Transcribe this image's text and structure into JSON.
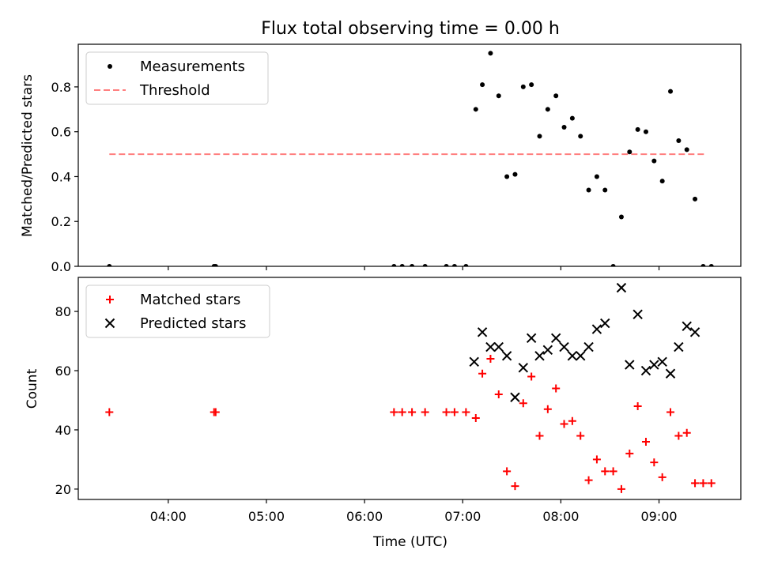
{
  "chart_data": [
    {
      "type": "scatter",
      "title": "Flux total observing time = 0.00 h",
      "xlabel": "",
      "ylabel": "Matched/Predicted stars",
      "ylim": [
        0,
        0.99
      ],
      "xlim": [
        "03:05",
        "09:50"
      ],
      "yticks": [
        "0.0",
        "0.2",
        "0.4",
        "0.6",
        "0.8"
      ],
      "legend": {
        "placement": "top-left",
        "entries": [
          {
            "label": "Measurements"
          },
          {
            "label": "Threshold"
          }
        ]
      },
      "threshold": {
        "name": "Threshold",
        "value": 0.5,
        "x_start": "03:24",
        "x_end": "09:28",
        "color": "#ff7f7f"
      },
      "series": [
        {
          "name": "Measurements",
          "color": "#000000",
          "points": [
            [
              "03:24",
              0.0
            ],
            [
              "04:28",
              0.0
            ],
            [
              "04:29",
              0.0
            ],
            [
              "06:18",
              0.0
            ],
            [
              "06:23",
              0.0
            ],
            [
              "06:29",
              0.0
            ],
            [
              "06:37",
              0.0
            ],
            [
              "06:50",
              0.0
            ],
            [
              "06:55",
              0.0
            ],
            [
              "07:02",
              0.0
            ],
            [
              "07:08",
              0.7
            ],
            [
              "07:12",
              0.81
            ],
            [
              "07:17",
              0.95
            ],
            [
              "07:22",
              0.76
            ],
            [
              "07:27",
              0.4
            ],
            [
              "07:32",
              0.41
            ],
            [
              "07:37",
              0.8
            ],
            [
              "07:42",
              0.81
            ],
            [
              "07:47",
              0.58
            ],
            [
              "07:52",
              0.7
            ],
            [
              "07:57",
              0.76
            ],
            [
              "08:02",
              0.62
            ],
            [
              "08:07",
              0.66
            ],
            [
              "08:12",
              0.58
            ],
            [
              "08:17",
              0.34
            ],
            [
              "08:22",
              0.4
            ],
            [
              "08:27",
              0.34
            ],
            [
              "08:32",
              0.0
            ],
            [
              "08:37",
              0.22
            ],
            [
              "08:42",
              0.51
            ],
            [
              "08:47",
              0.61
            ],
            [
              "08:52",
              0.6
            ],
            [
              "08:57",
              0.47
            ],
            [
              "09:02",
              0.38
            ],
            [
              "09:07",
              0.78
            ],
            [
              "09:12",
              0.56
            ],
            [
              "09:17",
              0.52
            ],
            [
              "09:22",
              0.3
            ],
            [
              "09:27",
              0.0
            ],
            [
              "09:32",
              0.0
            ]
          ]
        }
      ]
    },
    {
      "type": "scatter",
      "title": "",
      "xlabel": "Time (UTC)",
      "ylabel": "Count",
      "ylim": [
        16.5,
        91.5
      ],
      "xlim": [
        "03:05",
        "09:50"
      ],
      "xticks": [
        "04:00",
        "05:00",
        "06:00",
        "07:00",
        "08:00",
        "09:00"
      ],
      "yticks": [
        "20",
        "40",
        "60",
        "80"
      ],
      "legend": {
        "placement": "top-left",
        "entries": [
          {
            "label": "Matched stars"
          },
          {
            "label": "Predicted stars"
          }
        ]
      },
      "series": [
        {
          "name": "Matched stars",
          "marker": "plus",
          "color": "#ff0000",
          "points": [
            [
              "03:24",
              46
            ],
            [
              "04:28",
              46
            ],
            [
              "04:29",
              46
            ],
            [
              "06:18",
              46
            ],
            [
              "06:23",
              46
            ],
            [
              "06:29",
              46
            ],
            [
              "06:37",
              46
            ],
            [
              "06:50",
              46
            ],
            [
              "06:55",
              46
            ],
            [
              "07:02",
              46
            ],
            [
              "07:08",
              44
            ],
            [
              "07:12",
              59
            ],
            [
              "07:17",
              64
            ],
            [
              "07:22",
              52
            ],
            [
              "07:27",
              26
            ],
            [
              "07:32",
              21
            ],
            [
              "07:37",
              49
            ],
            [
              "07:42",
              58
            ],
            [
              "07:47",
              38
            ],
            [
              "07:52",
              47
            ],
            [
              "07:57",
              54
            ],
            [
              "08:02",
              42
            ],
            [
              "08:07",
              43
            ],
            [
              "08:12",
              38
            ],
            [
              "08:17",
              23
            ],
            [
              "08:22",
              30
            ],
            [
              "08:27",
              26
            ],
            [
              "08:32",
              26
            ],
            [
              "08:37",
              20
            ],
            [
              "08:42",
              32
            ],
            [
              "08:47",
              48
            ],
            [
              "08:52",
              36
            ],
            [
              "08:57",
              29
            ],
            [
              "09:02",
              24
            ],
            [
              "09:07",
              46
            ],
            [
              "09:12",
              38
            ],
            [
              "09:17",
              39
            ],
            [
              "09:22",
              22
            ],
            [
              "09:27",
              22
            ],
            [
              "09:32",
              22
            ]
          ]
        },
        {
          "name": "Predicted stars",
          "marker": "x",
          "color": "#000000",
          "points": [
            [
              "07:07",
              63
            ],
            [
              "07:12",
              73
            ],
            [
              "07:17",
              68
            ],
            [
              "07:22",
              68
            ],
            [
              "07:27",
              65
            ],
            [
              "07:32",
              51
            ],
            [
              "07:37",
              61
            ],
            [
              "07:42",
              71
            ],
            [
              "07:47",
              65
            ],
            [
              "07:52",
              67
            ],
            [
              "07:57",
              71
            ],
            [
              "08:02",
              68
            ],
            [
              "08:07",
              65
            ],
            [
              "08:12",
              65
            ],
            [
              "08:17",
              68
            ],
            [
              "08:22",
              74
            ],
            [
              "08:27",
              76
            ],
            [
              "08:37",
              88
            ],
            [
              "08:42",
              62
            ],
            [
              "08:47",
              79
            ],
            [
              "08:52",
              60
            ],
            [
              "08:57",
              62
            ],
            [
              "09:02",
              63
            ],
            [
              "09:07",
              59
            ],
            [
              "09:12",
              68
            ],
            [
              "09:17",
              75
            ],
            [
              "09:22",
              73
            ]
          ]
        }
      ]
    }
  ]
}
